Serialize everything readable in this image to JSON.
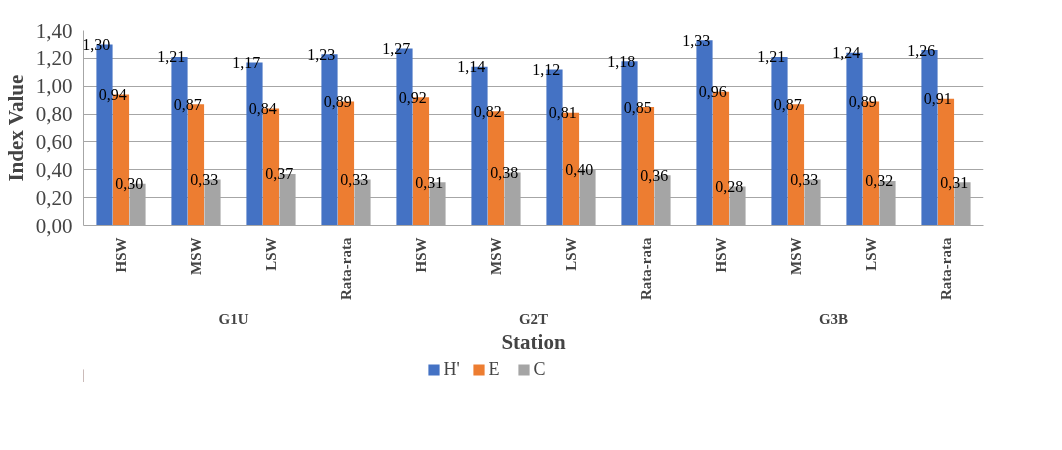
{
  "chart_data": {
    "type": "bar",
    "xlabel": "Station",
    "ylabel": "Index Value",
    "categories": [
      "HSW",
      "MSW",
      "LSW",
      "Rata-rata",
      "HSW",
      "MSW",
      "LSW",
      "Rata-rata",
      "HSW",
      "MSW",
      "LSW",
      "Rata-rata"
    ],
    "annotations": [
      "G1U",
      "G2T",
      "G3B"
    ],
    "series": [
      {
        "name": "H'",
        "color": "#4472c4",
        "values": [
          1.3,
          1.21,
          1.17,
          1.23,
          1.27,
          1.14,
          1.12,
          1.18,
          1.33,
          1.21,
          1.24,
          1.26
        ],
        "value_labels": [
          "1,30",
          "1,21",
          "1,17",
          "1,23",
          "1,27",
          "1,14",
          "1,12",
          "1,18",
          "1,33",
          "1,21",
          "1,24",
          "1,26"
        ]
      },
      {
        "name": "E",
        "color": "#ed7d31",
        "values": [
          0.94,
          0.87,
          0.84,
          0.89,
          0.92,
          0.82,
          0.81,
          0.85,
          0.96,
          0.87,
          0.89,
          0.91
        ],
        "value_labels": [
          "0,94",
          "0,87",
          "0,84",
          "0,89",
          "0,92",
          "0,82",
          "0,81",
          "0,85",
          "0,96",
          "0,87",
          "0,89",
          "0,91"
        ]
      },
      {
        "name": "C",
        "color": "#a5a5a5",
        "values": [
          0.3,
          0.33,
          0.37,
          0.33,
          0.31,
          0.38,
          0.4,
          0.36,
          0.28,
          0.33,
          0.32,
          0.31
        ],
        "value_labels": [
          "0,30",
          "0,33",
          "0,37",
          "0,33",
          "0,31",
          "0,38",
          "0,40",
          "0,36",
          "0,28",
          "0,33",
          "0,32",
          "0,31"
        ]
      }
    ],
    "ylim": [
      0,
      1.4
    ],
    "yticks": [
      {
        "value": 0,
        "label": "0,00"
      },
      {
        "value": 0.2,
        "label": "0,20"
      },
      {
        "value": 0.4,
        "label": "0,40"
      },
      {
        "value": 0.6,
        "label": "0,60"
      },
      {
        "value": 0.8,
        "label": "0,80"
      },
      {
        "value": 1.0,
        "label": "1,00"
      },
      {
        "value": 1.2,
        "label": "1,20"
      },
      {
        "value": 1.4,
        "label": "1,40"
      }
    ],
    "grid": "y",
    "legend": "bottom"
  }
}
